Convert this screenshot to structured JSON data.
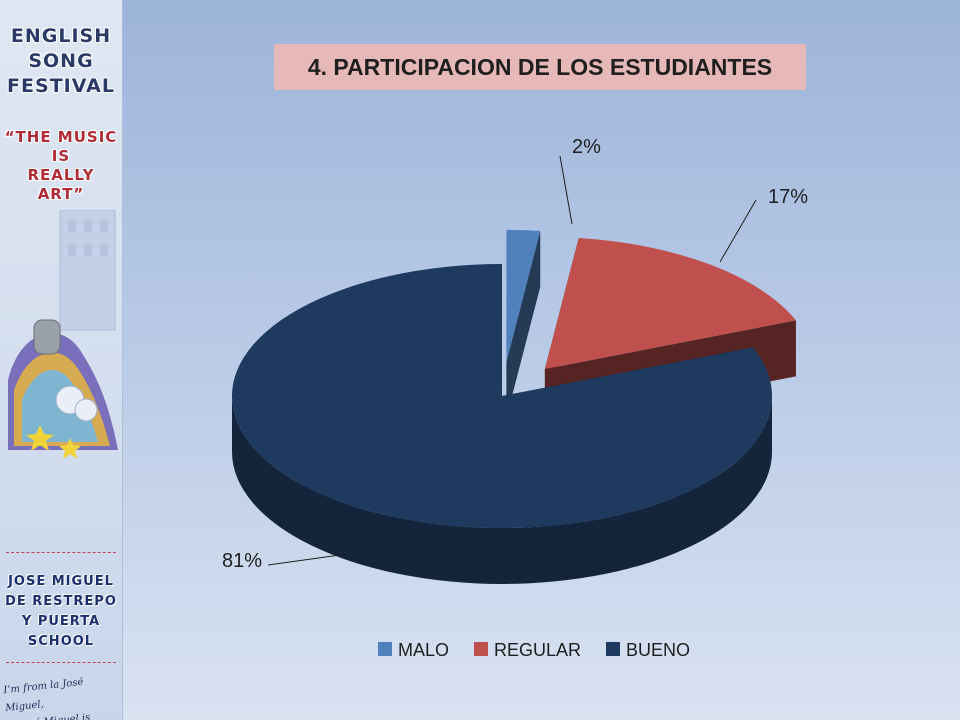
{
  "sidebar": {
    "festival_lines": [
      "ENGLISH",
      "SONG",
      "FESTIVAL"
    ],
    "motto_lines": [
      "“THE MUSIC",
      "IS",
      "REALLY",
      "ART”"
    ],
    "school_lines": [
      "JOSE MIGUEL",
      "DE RESTREPO",
      "Y PUERTA",
      "SCHOOL"
    ],
    "tagline_lines": [
      "I’m from la José Miguel,",
      "la José Miguel is Mine!"
    ]
  },
  "chart_data": {
    "type": "pie",
    "title": "4. PARTICIPACION DE LOS ESTUDIANTES",
    "categories": [
      "MALO",
      "REGULAR",
      "BUENO"
    ],
    "values": [
      2,
      17,
      81
    ],
    "labels": [
      "2%",
      "17%",
      "81%"
    ],
    "colors": [
      "#4f81bd",
      "#c0504d",
      "#1f3a5f"
    ],
    "legend": "bottom",
    "style": "3d-exploded"
  }
}
